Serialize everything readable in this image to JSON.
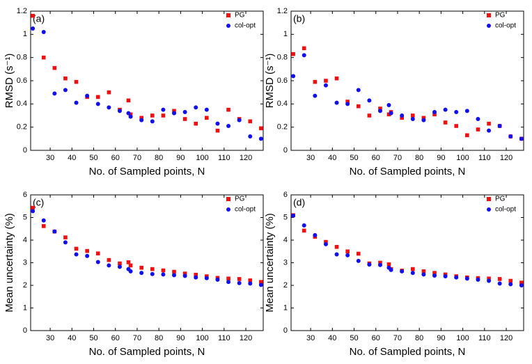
{
  "chart_data": [
    {
      "type": "scatter",
      "annotation": "(a)",
      "xlabel": "No. of Sampled points, N",
      "ylabel": "RMSD (s⁻¹)",
      "x": [
        22,
        27,
        32,
        37,
        42,
        47,
        52,
        57,
        62,
        66,
        67,
        72,
        77,
        82,
        87,
        92,
        97,
        102,
        107,
        112,
        117,
        122,
        127
      ],
      "xlim": [
        21,
        128
      ],
      "xticks": [
        30,
        40,
        50,
        60,
        70,
        80,
        90,
        100,
        110,
        120
      ],
      "ylim": [
        0,
        1.2
      ],
      "yticks": [
        0,
        0.2,
        0.4,
        0.6,
        0.8,
        1,
        1.2
      ],
      "legend": "upper right",
      "series": [
        {
          "name": "PG",
          "color": "#ee1111",
          "marker": "square",
          "values": [
            1.16,
            0.8,
            0.71,
            0.62,
            0.59,
            0.46,
            0.46,
            0.5,
            0.35,
            0.43,
            0.31,
            0.28,
            0.3,
            0.3,
            0.34,
            0.27,
            0.23,
            0.28,
            0.17,
            0.35,
            0.27,
            0.25,
            0.19
          ]
        },
        {
          "name": "col-opt",
          "color": "#1111ee",
          "marker": "circle",
          "values": [
            1.05,
            1.02,
            0.49,
            0.52,
            0.41,
            0.47,
            0.4,
            0.37,
            0.34,
            0.32,
            0.29,
            0.26,
            0.25,
            0.35,
            0.32,
            0.33,
            0.37,
            0.35,
            0.23,
            0.21,
            0.26,
            0.12,
            0.1
          ]
        }
      ]
    },
    {
      "type": "scatter",
      "annotation": "(b)",
      "xlabel": "No. of Sampled points, N",
      "ylabel": "RMSD (s⁻¹)",
      "x": [
        22,
        27,
        32,
        37,
        42,
        47,
        52,
        57,
        62,
        66,
        67,
        72,
        77,
        82,
        87,
        92,
        97,
        102,
        107,
        112,
        117,
        122,
        127
      ],
      "xlim": [
        21,
        128
      ],
      "xticks": [
        30,
        40,
        50,
        60,
        70,
        80,
        90,
        100,
        110,
        120
      ],
      "ylim": [
        0,
        1.2
      ],
      "yticks": [
        0,
        0.2,
        0.4,
        0.6,
        0.8,
        1,
        1.2
      ],
      "legend": "upper right",
      "series": [
        {
          "name": "PG",
          "color": "#ee1111",
          "marker": "square",
          "values": [
            0.83,
            0.88,
            0.59,
            0.6,
            0.62,
            0.42,
            0.38,
            0.3,
            0.36,
            0.31,
            0.33,
            0.28,
            0.3,
            0.28,
            0.31,
            0.24,
            0.21,
            0.13,
            0.18,
            0.23,
            0.21,
            0.12,
            0.1
          ]
        },
        {
          "name": "col-opt",
          "color": "#1111ee",
          "marker": "circle",
          "values": [
            0.64,
            0.82,
            0.47,
            0.56,
            0.41,
            0.4,
            0.52,
            0.43,
            0.34,
            0.39,
            0.32,
            0.3,
            0.27,
            0.26,
            0.33,
            0.35,
            0.33,
            0.34,
            0.27,
            0.17,
            0.21,
            0.12,
            0.1
          ]
        }
      ]
    },
    {
      "type": "scatter",
      "annotation": "(c)",
      "xlabel": "No. of Sampled points, N",
      "ylabel": "Mean uncertainty (%)",
      "x": [
        22,
        27,
        32,
        37,
        42,
        47,
        52,
        57,
        62,
        66,
        67,
        72,
        77,
        82,
        87,
        92,
        97,
        102,
        107,
        112,
        117,
        122,
        127
      ],
      "xlim": [
        21,
        128
      ],
      "xticks": [
        30,
        40,
        50,
        60,
        70,
        80,
        90,
        100,
        110,
        120
      ],
      "ylim": [
        0,
        6
      ],
      "yticks": [
        0,
        1,
        2,
        3,
        4,
        5,
        6
      ],
      "legend": "upper right",
      "series": [
        {
          "name": "PG",
          "color": "#ee1111",
          "marker": "square",
          "values": [
            5.43,
            4.62,
            4.38,
            4.12,
            3.62,
            3.52,
            3.41,
            3.12,
            2.97,
            3.02,
            2.88,
            2.78,
            2.72,
            2.66,
            2.6,
            2.52,
            2.47,
            2.4,
            2.33,
            2.3,
            2.28,
            2.22,
            2.15
          ]
        },
        {
          "name": "col-opt",
          "color": "#1111ee",
          "marker": "circle",
          "values": [
            5.28,
            4.87,
            4.38,
            3.9,
            3.37,
            3.3,
            3.03,
            2.88,
            2.82,
            2.72,
            2.62,
            2.55,
            2.5,
            2.48,
            2.45,
            2.42,
            2.35,
            2.32,
            2.25,
            2.15,
            2.1,
            2.08,
            2.02
          ]
        }
      ]
    },
    {
      "type": "scatter",
      "annotation": "(d)",
      "xlabel": "No. of Sampled points, N",
      "ylabel": "Mean uncertainty (%)",
      "x": [
        22,
        27,
        32,
        37,
        42,
        47,
        52,
        57,
        62,
        66,
        67,
        72,
        77,
        82,
        87,
        92,
        97,
        102,
        107,
        112,
        117,
        122,
        127
      ],
      "xlim": [
        21,
        128
      ],
      "xticks": [
        30,
        40,
        50,
        60,
        70,
        80,
        90,
        100,
        110,
        120
      ],
      "ylim": [
        0,
        6
      ],
      "yticks": [
        0,
        1,
        2,
        3,
        4,
        5,
        6
      ],
      "legend": "upper right",
      "series": [
        {
          "name": "PG",
          "color": "#ee1111",
          "marker": "square",
          "values": [
            5.1,
            4.42,
            4.15,
            3.92,
            3.7,
            3.5,
            3.4,
            2.97,
            3.0,
            2.93,
            2.72,
            2.65,
            2.72,
            2.62,
            2.55,
            2.48,
            2.4,
            2.35,
            2.32,
            2.3,
            2.28,
            2.2,
            2.12
          ]
        },
        {
          "name": "col-opt",
          "color": "#1111ee",
          "marker": "circle",
          "values": [
            5.08,
            4.65,
            4.22,
            3.82,
            3.37,
            3.33,
            3.08,
            2.92,
            2.9,
            2.78,
            2.68,
            2.62,
            2.55,
            2.48,
            2.43,
            2.4,
            2.35,
            2.3,
            2.25,
            2.2,
            2.08,
            2.05,
            2.0
          ]
        }
      ]
    }
  ]
}
